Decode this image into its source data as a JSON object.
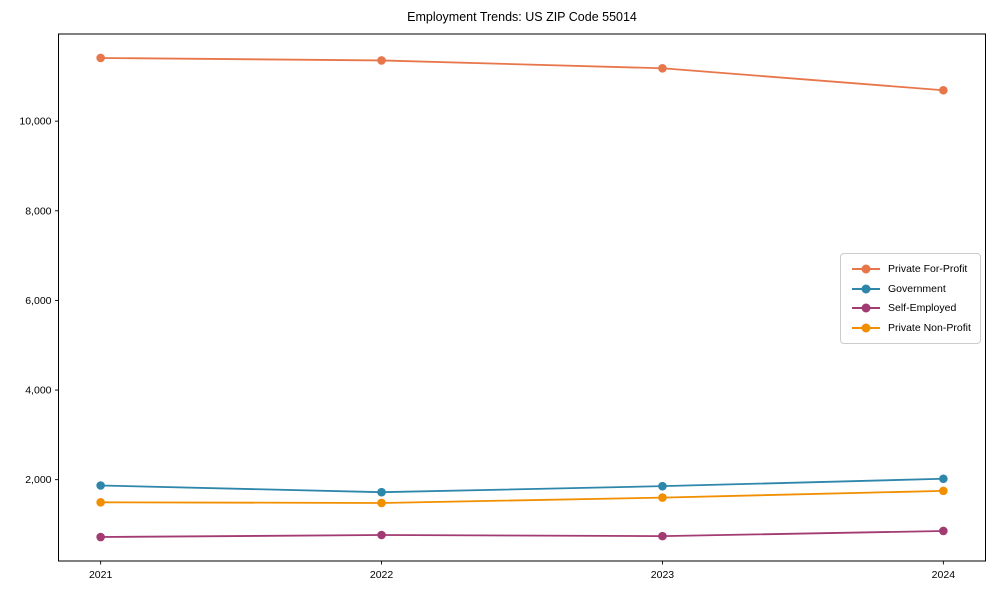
{
  "chart_data": {
    "type": "line",
    "title": "Employment Trends: US ZIP Code 55014",
    "x": [
      2021,
      2022,
      2023,
      2024
    ],
    "x_tick_labels": [
      "2021",
      "2022",
      "2023",
      "2024"
    ],
    "series": [
      {
        "name": "Private For-Profit",
        "color": "#E8764B",
        "values": [
          11410,
          11355,
          11180,
          10690
        ]
      },
      {
        "name": "Government",
        "color": "#2E86AB",
        "values": [
          1870,
          1720,
          1855,
          2020
        ]
      },
      {
        "name": "Self-Employed",
        "color": "#A23B72",
        "values": [
          720,
          765,
          740,
          855
        ]
      },
      {
        "name": "Private Non-Profit",
        "color": "#F18F01",
        "values": [
          1495,
          1480,
          1600,
          1750
        ]
      }
    ],
    "yticks": [
      2000,
      4000,
      6000,
      8000,
      10000
    ],
    "ytick_labels": [
      "2,000",
      "4,000",
      "6,000",
      "8,000",
      "10,000"
    ],
    "xlim": [
      2020.85,
      2024.15
    ],
    "ylim": [
      185,
      11945
    ],
    "grid": false,
    "legend_position": "center-right",
    "marker": "circle",
    "line_width": 1.8,
    "marker_radius": 4.3,
    "spine_color": "#000000"
  }
}
